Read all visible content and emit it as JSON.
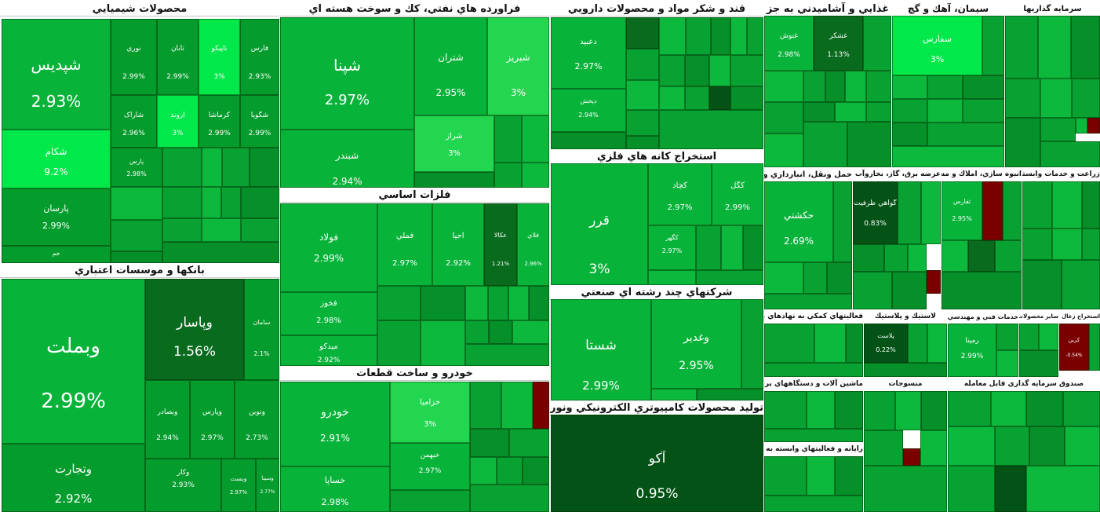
{
  "sectors": [
    {
      "id": "chem",
      "title": "محصولات شيميايي"
    },
    {
      "id": "bank",
      "title": "بانکها و موسسات اعتباري"
    },
    {
      "id": "petro",
      "title": "فراورده هاي نفتي، كك و سوخت هسته اي"
    },
    {
      "id": "metal",
      "title": "فلزات اساسي"
    },
    {
      "id": "auto",
      "title": "خودرو و ساخت قطعات"
    },
    {
      "id": "pharma",
      "title": "قند و شکر مواد و محصولات دارويي"
    },
    {
      "id": "mine",
      "title": "استخراج کانه هاي فلزي"
    },
    {
      "id": "multi",
      "title": "شرکتهاي چند رشته اي صنعتي"
    },
    {
      "id": "comp",
      "title": "توليد محصولات کامپيوتري الکترونيکي ونوري"
    },
    {
      "id": "food",
      "title": "غذايي و آشاميدني به جز"
    },
    {
      "id": "cement",
      "title": "سيمان، آهك و گچ"
    },
    {
      "id": "invest",
      "title": "سرمايه گذاريها"
    },
    {
      "id": "telecom",
      "title": "حمل ونقل، انبارداري و ارتباطات"
    },
    {
      "id": "utility",
      "title": "عرضه برق، گاز، بخاروآب گرم"
    },
    {
      "id": "realestate",
      "title": "انبوه سازي، املاك و مستغلات"
    },
    {
      "id": "agri",
      "title": "زراعت و خدمات وابسته"
    },
    {
      "id": "finance",
      "title": "فعاليتهاي کمکي به نهادهاي مالي واسط"
    },
    {
      "id": "plastic",
      "title": "لاستيك و پلاستيك"
    },
    {
      "id": "engineering",
      "title": "خدمات فني و مهندسي"
    },
    {
      "id": "mineral",
      "title": "ساير محصولات كاني غيرفلزي"
    },
    {
      "id": "coal",
      "title": "استخراج زغال سنگ"
    },
    {
      "id": "machinery",
      "title": "ماشين آلات و دستگاههاي برقي"
    },
    {
      "id": "ict",
      "title": "رايانه و فعاليتهاي وابسته به آن"
    },
    {
      "id": "textile",
      "title": "منسوجات"
    },
    {
      "id": "fund",
      "title": "صندوق سرمايه گذاري قابل معامله"
    }
  ],
  "tiles": {
    "shepdis": {
      "name": "شپديس",
      "change": "2.93%"
    },
    "nori": {
      "name": "نوري",
      "change": "2.99%"
    },
    "tapiko": {
      "name": "تاپيکو",
      "change": "3%"
    },
    "tabat": {
      "name": "تابان",
      "change": "2.99%"
    },
    "fars": {
      "name": "فارس",
      "change": "2.93%"
    },
    "shkam": {
      "name": "شکام",
      "change": "9.2%"
    },
    "sharak": {
      "name": "شاراک",
      "change": "2.96%"
    },
    "arond": {
      "name": "آروند",
      "change": "3%"
    },
    "kermasha": {
      "name": "کرماشا",
      "change": "2.99%"
    },
    "shegoya": {
      "name": "شگويا",
      "change": "2.99%"
    },
    "parsan": {
      "name": "پارسان",
      "change": "2.99%"
    },
    "jam": {
      "name": "جم",
      "change": ""
    },
    "pars": {
      "name": "پارس",
      "change": "2.98%"
    },
    "vbemellat": {
      "name": "وبملت",
      "change": "2.99%"
    },
    "vpasar": {
      "name": "وپاسار",
      "change": "1.56%"
    },
    "saman": {
      "name": "سامان",
      "change": "2.1%"
    },
    "vtejarat": {
      "name": "وتجارت",
      "change": "2.92%"
    },
    "vbsader": {
      "name": "وبصادر",
      "change": "2.94%"
    },
    "vparsi": {
      "name": "وپارس",
      "change": "2.97%"
    },
    "vnovin": {
      "name": "ونوين",
      "change": "2.73%"
    },
    "vkar": {
      "name": "وکار",
      "change": "2.93%"
    },
    "vsist": {
      "name": "وبست",
      "change": "2.97%"
    },
    "vsina": {
      "name": "وسينا",
      "change": "2.77%"
    },
    "shepna": {
      "name": "شپنا",
      "change": "2.97%"
    },
    "shtran": {
      "name": "شتران",
      "change": "2.95%"
    },
    "shbriz": {
      "name": "شبريز",
      "change": "3%"
    },
    "shbandar": {
      "name": "شبندر",
      "change": "2.94%"
    },
    "shraz": {
      "name": "شراز",
      "change": "3%"
    },
    "fooolad": {
      "name": "فولاد",
      "change": "2.99%"
    },
    "fmeli": {
      "name": "فملي",
      "change": "2.97%"
    },
    "ahya": {
      "name": "احيا",
      "change": "2.92%"
    },
    "akala": {
      "name": "عکالا",
      "change": "1.21%"
    },
    "folay": {
      "name": "فلاي",
      "change": "2.96%"
    },
    "fakhooz": {
      "name": "فخوز",
      "change": "2.98%"
    },
    "mido": {
      "name": "ميدکو",
      "change": "2.92%"
    },
    "khodro": {
      "name": "خودرو",
      "change": "2.91%"
    },
    "khzamia": {
      "name": "خزاميا",
      "change": "3%"
    },
    "khsapa": {
      "name": "خساپا",
      "change": "2.98%"
    },
    "khbahman": {
      "name": "خبهمن",
      "change": "2.97%"
    },
    "dabid": {
      "name": "دعبيد",
      "change": "2.97%"
    },
    "dpakhsh": {
      "name": "دپخش",
      "change": "2.94%"
    },
    "qrar": {
      "name": "قرر",
      "change": "3%"
    },
    "kchad": {
      "name": "کچاد",
      "change": "2.97%"
    },
    "kgol": {
      "name": "کگل",
      "change": "2.99%"
    },
    "kgohar": {
      "name": "کگهر",
      "change": "2.97%"
    },
    "shsta": {
      "name": "شستا",
      "change": "2.99%"
    },
    "vghadir": {
      "name": "وغدير",
      "change": "2.95%"
    },
    "ako": {
      "name": "آکو",
      "change": "0.95%"
    },
    "ghshos": {
      "name": "غنوش",
      "change": "2.98%"
    },
    "ghshekar": {
      "name": "غشکر",
      "change": "1.13%"
    },
    "sfars": {
      "name": "سفارس",
      "change": "3%"
    },
    "hkeshti": {
      "name": "حکشتي",
      "change": "2.69%"
    },
    "gavahi": {
      "name": "گواهي ظرفيت",
      "change": "0.83%"
    },
    "tfars": {
      "name": "ثفارس",
      "change": "2.95%"
    },
    "crbon": {
      "name": "کربن",
      "change": "-0.54%"
    },
    "ramna": {
      "name": "رمپنا",
      "change": "2.99%"
    },
    "plast": {
      "name": "پلاست",
      "change": "0.22%"
    }
  }
}
